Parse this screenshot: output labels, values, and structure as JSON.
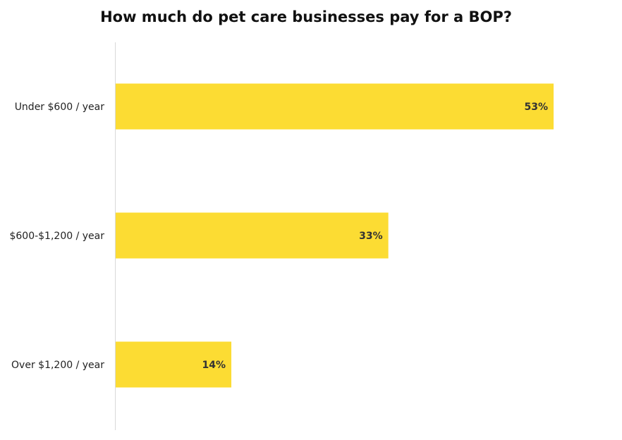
{
  "chart_data": {
    "type": "bar",
    "orientation": "horizontal",
    "title": "How much do pet care businesses pay for a BOP?",
    "categories": [
      "Under $600 / year",
      "$600-$1,200 / year",
      "Over $1,200 / year"
    ],
    "values": [
      53,
      33,
      14
    ],
    "value_labels": [
      "53%",
      "33%",
      "14%"
    ],
    "xlim": [
      0,
      100
    ],
    "grid": false,
    "legend": "none",
    "colors": {
      "bar": "#FCDC33",
      "axis": "#d9d9d9",
      "title": "#111111",
      "label": "#222222",
      "value_label": "#333333"
    }
  }
}
